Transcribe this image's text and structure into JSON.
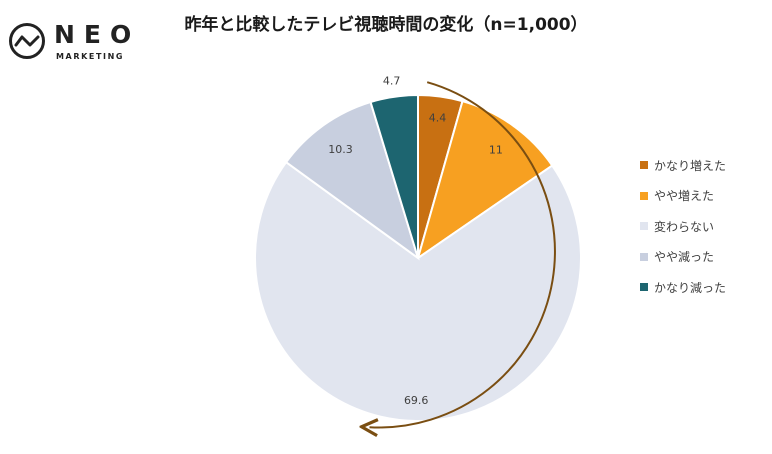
{
  "logo": {
    "wordmark": "NEO",
    "sub": "MARKETING",
    "icon": "neo-pulse-circle-icon"
  },
  "chart_data": {
    "type": "pie",
    "title": "昨年と比較したテレビ視聴時間の変化（n=1,000）",
    "start_angle_deg": 0,
    "direction": "clockwise",
    "slices": [
      {
        "label": "かなり増えた",
        "value": 4.4,
        "color": "#C87012",
        "value_label": "4.4"
      },
      {
        "label": "やや増えた",
        "value": 11,
        "color": "#F7A021",
        "value_label": "11"
      },
      {
        "label": "変わらない",
        "value": 69.6,
        "color": "#E1E5EF",
        "value_label": "69.6"
      },
      {
        "label": "やや減った",
        "value": 10.3,
        "color": "#C8CFDF",
        "value_label": "10.3"
      },
      {
        "label": "かなり減った",
        "value": 4.7,
        "color": "#1D6570",
        "value_label": "4.7"
      }
    ],
    "legend_position": "right",
    "annotation": {
      "type": "clockwise-arrow",
      "color": "#7A4E12"
    }
  }
}
